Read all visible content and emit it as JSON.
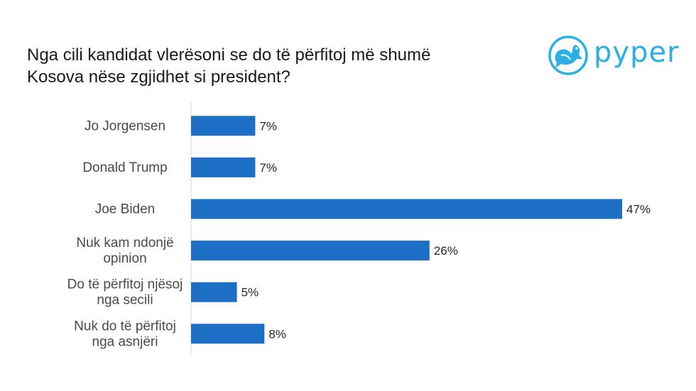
{
  "title_line1": "Nga cili kandidat vlerësoni se do të përfitoj më shumë",
  "title_line2": "Kosova nëse zgjidhet si president?",
  "logo": {
    "text": "pyper",
    "icon": "bird-icon",
    "color": "#2ab0e6"
  },
  "chart_data": {
    "type": "bar",
    "orientation": "horizontal",
    "categories": [
      [
        "Jo Jorgensen"
      ],
      [
        "Donald Trump"
      ],
      [
        "Joe Biden"
      ],
      [
        "Nuk kam ndonjë",
        "opinion"
      ],
      [
        "Do të përfitoj njësoj",
        "nga secili"
      ],
      [
        "Nuk do të përfitoj",
        "nga asnjëri"
      ]
    ],
    "values": [
      7,
      7,
      47,
      26,
      5,
      8
    ],
    "value_labels": [
      "7%",
      "7%",
      "47%",
      "26%",
      "5%",
      "8%"
    ],
    "bar_color": "#1c6fc4",
    "xlim": [
      0,
      47
    ],
    "grid": false
  }
}
